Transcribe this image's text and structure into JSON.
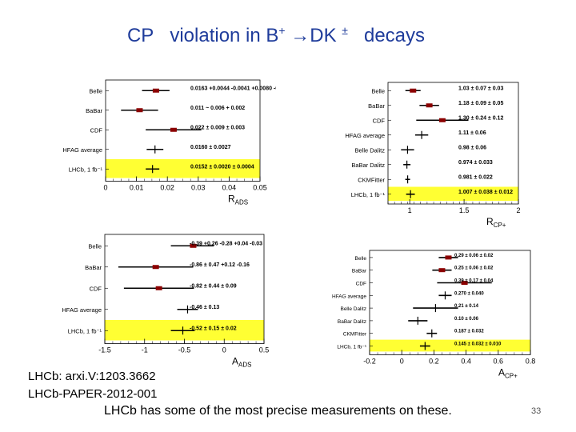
{
  "title": {
    "part1": "CP",
    "part2": "violation in B",
    "sup1": "+",
    "arrow": "→",
    "part3": "DK",
    "sup2": "±",
    "part4": "decays"
  },
  "refs": [
    "LHCb: arxi.V:1203.3662",
    "LHCb-PAPER-2012-001"
  ],
  "footer": "LHCb has some of  the most  precise measurements  on these.",
  "page_number": "33",
  "colors": {
    "title": "#1f3c9b",
    "highlight": "#ffff33",
    "marker": "#8b0000"
  },
  "chart_data": [
    {
      "id": "rads",
      "type": "scatter",
      "xlabel": "R",
      "xsub": "ADS",
      "xlim": [
        0,
        0.05
      ],
      "ticks": [
        0,
        0.01,
        0.02,
        0.03,
        0.04,
        0.05
      ],
      "tick_labels": [
        "0",
        "0.01",
        "0.02",
        "0.03",
        "0.04",
        "0.05"
      ],
      "rows": [
        {
          "name": "Belle",
          "value": 0.0163,
          "lo": 0.0118,
          "hi": 0.0207,
          "label": "0.0163 +0.0044 -0.0041 +0.0080 -0.0013",
          "marker": "box"
        },
        {
          "name": "BaBar",
          "value": 0.011,
          "lo": 0.005,
          "hi": 0.017,
          "label": "0.011 ~ 0.006 + 0.002",
          "marker": "box"
        },
        {
          "name": "CDF",
          "value": 0.022,
          "lo": 0.013,
          "hi": 0.031,
          "label": "0.022 ± 0.009 ± 0.003",
          "marker": "box"
        },
        {
          "name": "HFAG average",
          "value": 0.016,
          "lo": 0.0133,
          "hi": 0.0187,
          "label": "0.0160 ± 0.0027",
          "marker": "cross"
        },
        {
          "name": "LHCb, 1 fb⁻¹",
          "value": 0.0152,
          "lo": 0.013,
          "hi": 0.0174,
          "label": "0.0152 ± 0.0020 ± 0.0004",
          "marker": "cross",
          "highlight": true
        }
      ]
    },
    {
      "id": "rcp",
      "type": "scatter",
      "xlabel": "R",
      "xsub": "CP+",
      "xlim": [
        0.8,
        2.0
      ],
      "ticks": [
        1,
        1.5,
        2
      ],
      "tick_labels": [
        "1",
        "1.5",
        "2"
      ],
      "rows": [
        {
          "name": "Belle",
          "value": 1.03,
          "lo": 0.96,
          "hi": 1.1,
          "label": "1.03 ± 0.07 ± 0.03",
          "marker": "box"
        },
        {
          "name": "BaBar",
          "value": 1.18,
          "lo": 1.09,
          "hi": 1.27,
          "label": "1.18 ± 0.09 ± 0.05",
          "marker": "box"
        },
        {
          "name": "CDF",
          "value": 1.3,
          "lo": 1.06,
          "hi": 1.54,
          "label": "1.30 ± 0.24 ± 0.12",
          "marker": "box"
        },
        {
          "name": "HFAG average",
          "value": 1.11,
          "lo": 1.05,
          "hi": 1.17,
          "label": "1.11 ± 0.06",
          "marker": "cross"
        },
        {
          "name": "Belle Dalitz",
          "value": 0.98,
          "lo": 0.92,
          "hi": 1.04,
          "label": "0.98 ± 0.06",
          "marker": "cross"
        },
        {
          "name": "BaBar Dalitz",
          "value": 0.974,
          "lo": 0.941,
          "hi": 1.007,
          "label": "0.974 ± 0.033",
          "marker": "cross"
        },
        {
          "name": "CKMFitter",
          "value": 0.981,
          "lo": 0.959,
          "hi": 1.003,
          "label": "0.981 ± 0.022",
          "marker": "cross"
        },
        {
          "name": "LHCb, 1 fb⁻¹",
          "value": 1.007,
          "lo": 0.967,
          "hi": 1.047,
          "label": "1.007 ± 0.038 ± 0.012",
          "marker": "cross",
          "highlight": true
        }
      ]
    },
    {
      "id": "aads",
      "type": "scatter",
      "xlabel": "A",
      "xsub": "ADS",
      "xlim": [
        -1.5,
        0.5
      ],
      "ticks": [
        -1.5,
        -1,
        -0.5,
        0,
        0.5
      ],
      "tick_labels": [
        "-1.5",
        "-1",
        "-0.5",
        "0",
        "0.5"
      ],
      "rows": [
        {
          "name": "Belle",
          "value": -0.39,
          "lo": -0.67,
          "hi": -0.13,
          "label": "-0.39 +0.26 -0.28 +0.04 -0.03",
          "marker": "box"
        },
        {
          "name": "BaBar",
          "value": -0.86,
          "lo": -1.33,
          "hi": -0.39,
          "label": "-0.86 ± 0.47 +0.12 -0.16",
          "marker": "box"
        },
        {
          "name": "CDF",
          "value": -0.82,
          "lo": -1.26,
          "hi": -0.38,
          "label": "-0.82 ± 0.44 ± 0.09",
          "marker": "box"
        },
        {
          "name": "HFAG average",
          "value": -0.46,
          "lo": -0.59,
          "hi": -0.33,
          "label": "-0.46 ± 0.13",
          "marker": "cross"
        },
        {
          "name": "LHCb, 1 fb⁻¹",
          "value": -0.52,
          "lo": -0.67,
          "hi": -0.37,
          "label": "-0.52 ± 0.15 ± 0.02",
          "marker": "cross",
          "highlight": true
        }
      ]
    },
    {
      "id": "acp",
      "type": "scatter",
      "xlabel": "A",
      "xsub": "CP+",
      "xlim": [
        -0.2,
        0.8
      ],
      "ticks": [
        -0.2,
        0,
        0.2,
        0.4,
        0.6,
        0.8
      ],
      "tick_labels": [
        "-0.2",
        "0",
        "0.2",
        "0.4",
        "0.6",
        "0.8"
      ],
      "rows": [
        {
          "name": "Belle",
          "value": 0.29,
          "lo": 0.23,
          "hi": 0.35,
          "label": "0.29 ± 0.06 ± 0.02",
          "marker": "box"
        },
        {
          "name": "BaBar",
          "value": 0.25,
          "lo": 0.19,
          "hi": 0.31,
          "label": "0.25 ± 0.06 ± 0.02",
          "marker": "box"
        },
        {
          "name": "CDF",
          "value": 0.39,
          "lo": 0.22,
          "hi": 0.56,
          "label": "0.39 ± 0.17 ± 0.04",
          "marker": "box"
        },
        {
          "name": "HFAG average",
          "value": 0.27,
          "lo": 0.23,
          "hi": 0.31,
          "label": "0.270 ± 0.040",
          "marker": "cross"
        },
        {
          "name": "Belle Dalitz",
          "value": 0.21,
          "lo": 0.07,
          "hi": 0.35,
          "label": "0.21 ± 0.14",
          "marker": "cross"
        },
        {
          "name": "BaBar Dalitz",
          "value": 0.1,
          "lo": 0.04,
          "hi": 0.16,
          "label": "0.10 ± 0.06",
          "marker": "cross"
        },
        {
          "name": "CKMFitter",
          "value": 0.187,
          "lo": 0.155,
          "hi": 0.219,
          "label": "0.187 ± 0.032",
          "marker": "cross"
        },
        {
          "name": "LHCb, 1 fb⁻¹",
          "value": 0.145,
          "lo": 0.113,
          "hi": 0.177,
          "label": "0.145 ± 0.032 ± 0.010",
          "marker": "cross",
          "highlight": true
        }
      ]
    }
  ]
}
